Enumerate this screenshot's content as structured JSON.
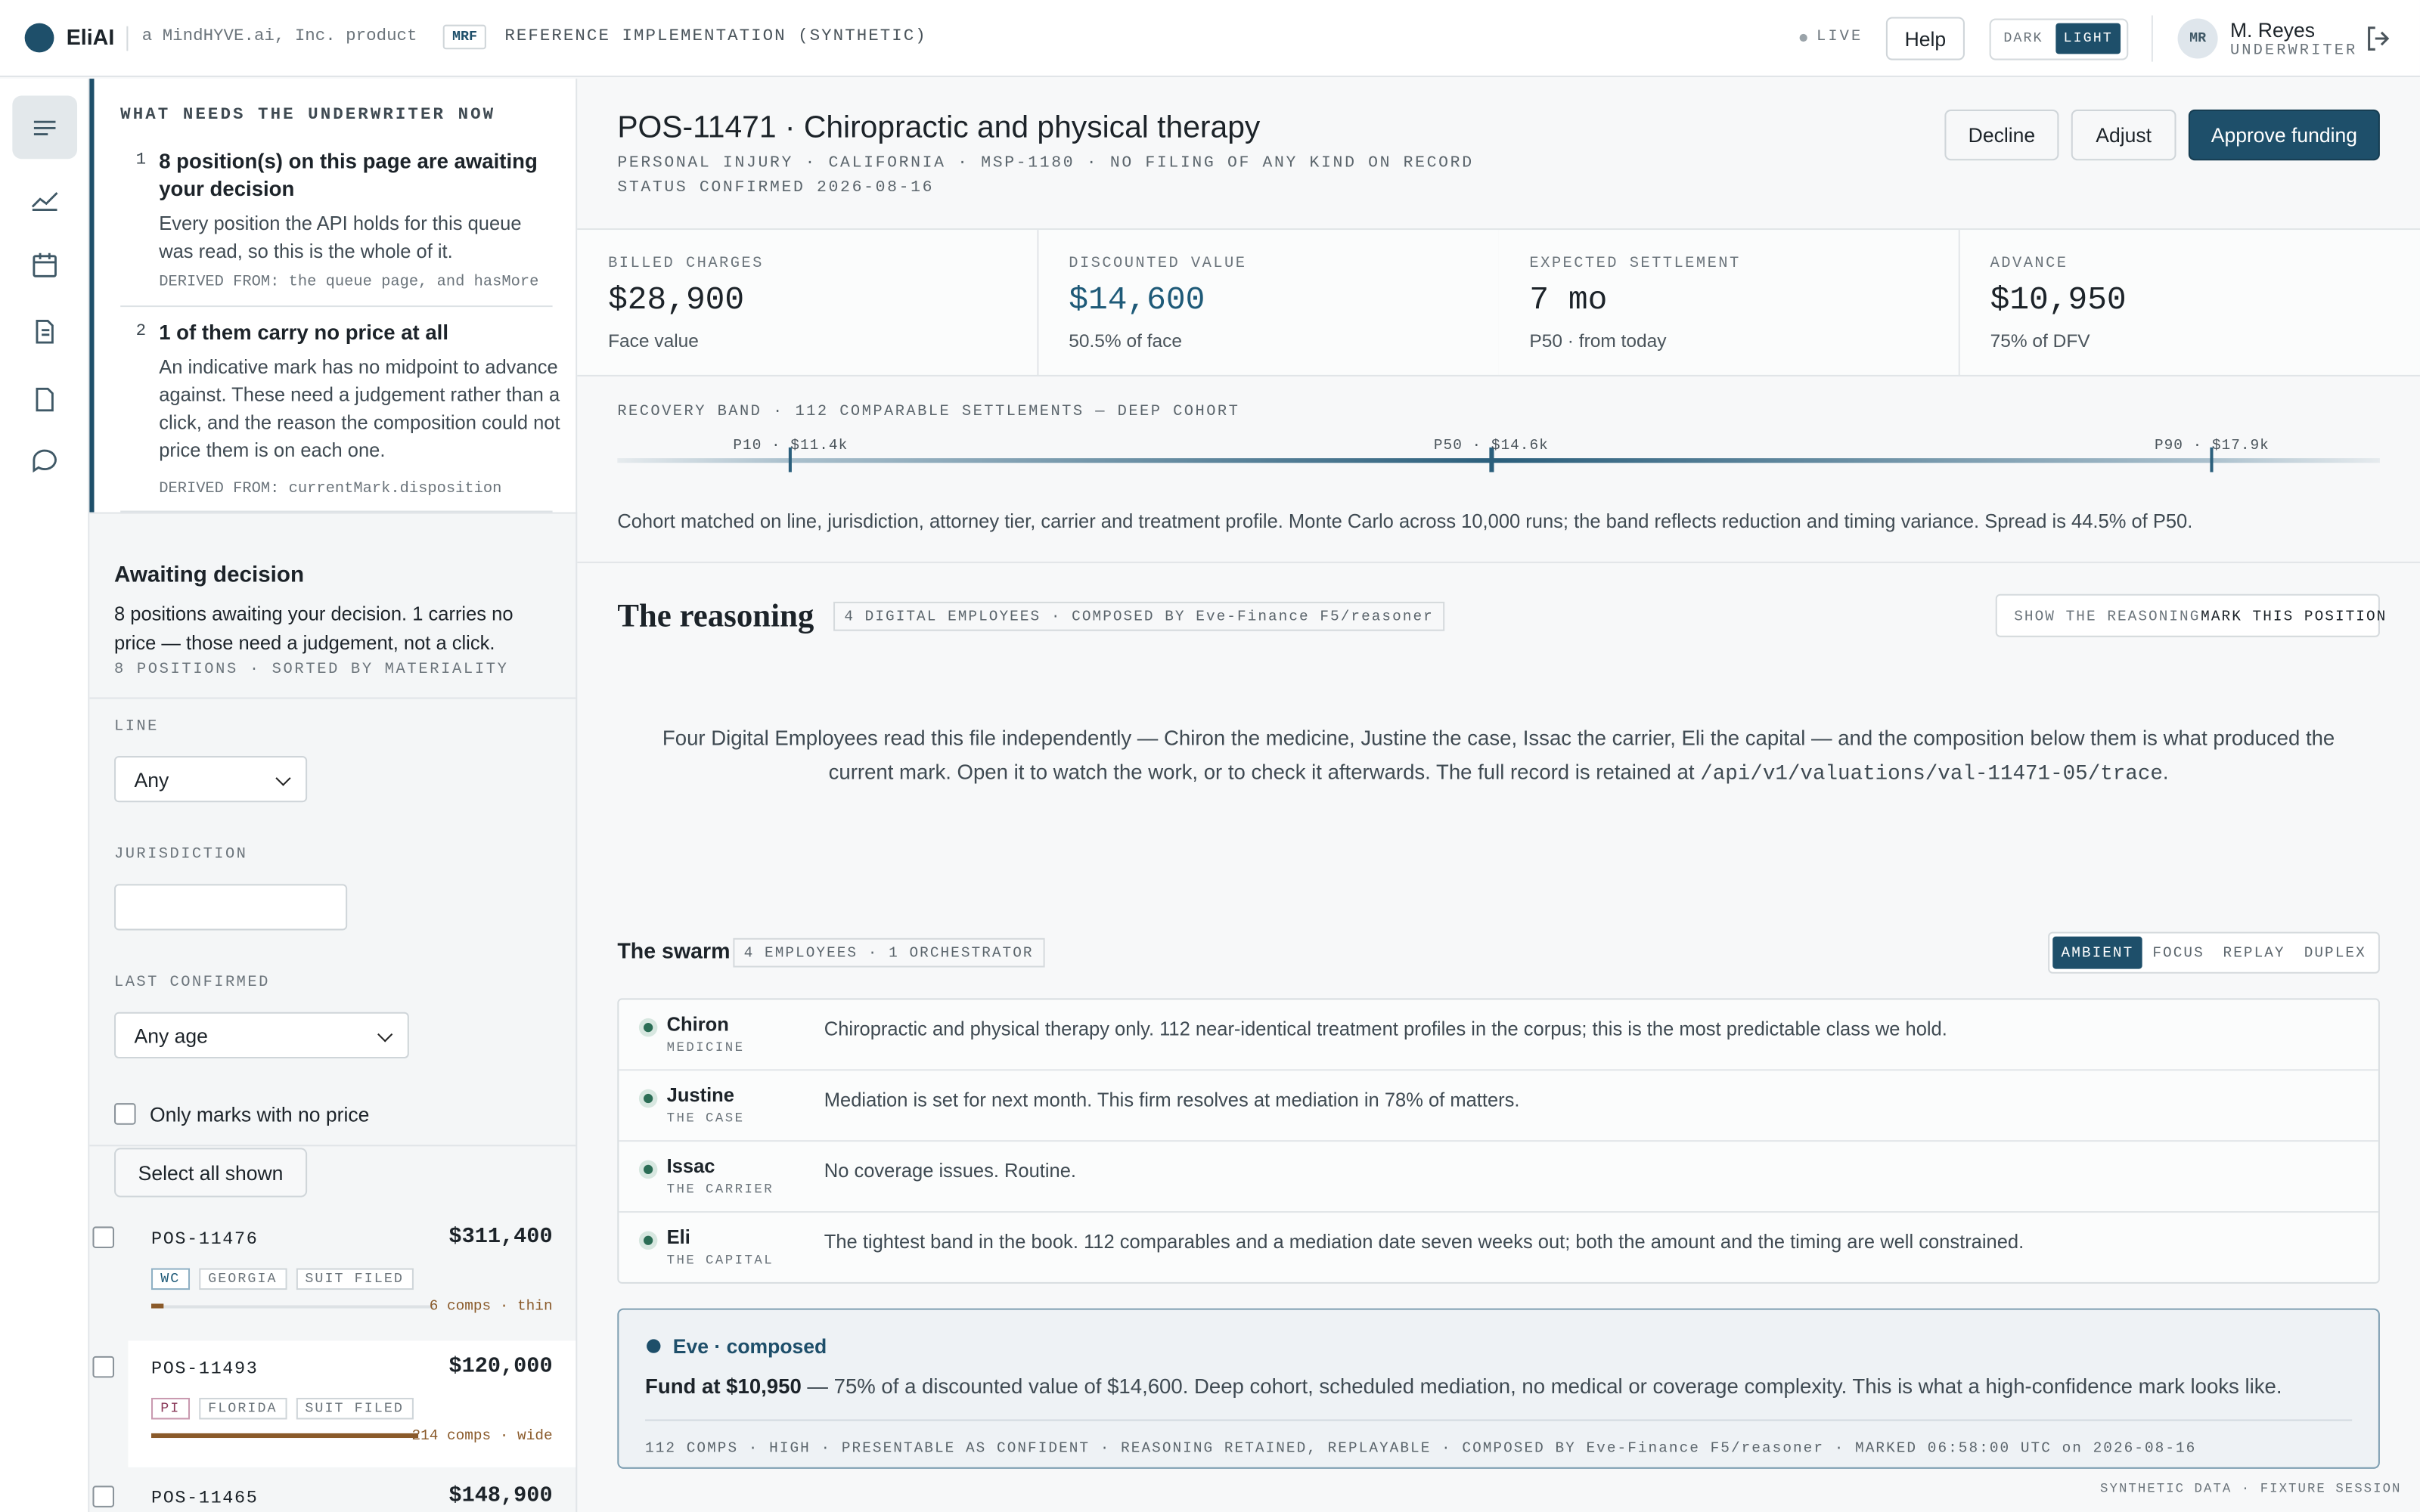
{
  "header": {
    "brand": "EliAI",
    "tagline": "a MindHYVE.ai, Inc. product",
    "badge": "MRF",
    "mode": "REFERENCE IMPLEMENTATION (SYNTHETIC)",
    "live": "LIVE",
    "help": "Help",
    "theme": [
      "DARK",
      "LIGHT"
    ],
    "user": {
      "initials": "MR",
      "name": "M. Reyes",
      "role": "UNDERWRITER"
    }
  },
  "briefing": {
    "title": "WHAT NEEDS THE UNDERWRITER NOW",
    "items": [
      {
        "num": "1",
        "head": "8 position(s) on this page are awaiting your decision",
        "body": "Every position the API holds for this queue was read, so this is the whole of it.",
        "derived": "DERIVED FROM: the queue page, and hasMore"
      },
      {
        "num": "2",
        "head": "1 of them carry no price at all",
        "body": "An indicative mark has no midpoint to advance against. These need a judgement rather than a click, and the reason the composition could not price them is on each one.",
        "derived": "DERIVED FROM: currentMark.disposition"
      }
    ]
  },
  "queue": {
    "title": "Awaiting decision",
    "summary": "8 positions awaiting your decision. 1 carries no price — those need a judgement, not a click.",
    "meta": "8 POSITIONS · SORTED BY MATERIALITY",
    "filters": {
      "line_label": "LINE",
      "line_value": "Any",
      "jurisdiction_label": "JURISDICTION",
      "last_label": "LAST CONFIRMED",
      "last_value": "Any age",
      "no_price": "Only marks with no price",
      "select_all": "Select all shown"
    },
    "positions": [
      {
        "id": "POS-11476",
        "amount": "$311,400",
        "tags": [
          "WC",
          "GEORGIA",
          "SUIT FILED"
        ],
        "comps": "6 comps · thin"
      },
      {
        "id": "POS-11493",
        "amount": "$120,000",
        "tags": [
          "PI",
          "FLORIDA",
          "SUIT FILED"
        ],
        "comps": "214 comps · wide"
      },
      {
        "id": "POS-11465",
        "amount": "$148,900"
      }
    ]
  },
  "position": {
    "title": "POS-11471 · Chiropractic and physical therapy",
    "meta": [
      "PERSONAL INJURY · CALIFORNIA · MSP-1180 · NO FILING OF ANY KIND ON RECORD",
      "STATUS CONFIRMED 2026-08-16"
    ],
    "actions": [
      "Decline",
      "Adjust",
      "Approve funding"
    ]
  },
  "metrics": [
    {
      "label": "BILLED CHARGES",
      "value": "$28,900",
      "note": "Face value"
    },
    {
      "label": "DISCOUNTED VALUE",
      "value": "$14,600",
      "note": "50.5% of face"
    },
    {
      "label": "EXPECTED SETTLEMENT",
      "value": "7 mo",
      "note": "P50 · from today"
    },
    {
      "label": "ADVANCE",
      "value": "$10,950",
      "note": "75% of DFV"
    }
  ],
  "band": {
    "title": "RECOVERY BAND · 112 COMPARABLE SETTLEMENTS — DEEP COHORT",
    "p10": "P10 · $11.4k",
    "p50": "P50 · $14.6k",
    "p90": "P90 · $17.9k",
    "note": "Cohort matched on line, jurisdiction, attorney tier, carrier and treatment profile. Monte Carlo across 10,000 runs; the band reflects reduction and timing variance. Spread is 44.5% of P50."
  },
  "reasoning": {
    "title": "The reasoning",
    "badge": "4 DIGITAL EMPLOYEES · COMPOSED BY Eve-Finance F5/reasoner",
    "toggles": [
      "SHOW THE REASONING",
      "MARK THIS POSITION"
    ],
    "intro": "Four Digital Employees read this file independently — Chiron the medicine, Justine the case, Issac the carrier, Eli the capital — and the composition below them is what produced the current mark. Open it to watch the work, or to check it afterwards. The full record is retained at ",
    "trace": "/api/v1/valuations/val-11471-05/trace",
    "intro_end": "."
  },
  "swarm": {
    "title": "The swarm",
    "badge": "4 EMPLOYEES · 1 ORCHESTRATOR",
    "modes": [
      "AMBIENT",
      "FOCUS",
      "REPLAY",
      "DUPLEX"
    ],
    "employees": [
      {
        "name": "Chiron",
        "role": "MEDICINE",
        "text": "Chiropractic and physical therapy only. 112 near-identical treatment profiles in the corpus; this is the most predictable class we hold."
      },
      {
        "name": "Justine",
        "role": "THE CASE",
        "text": "Mediation is set for next month. This firm resolves at mediation in 78% of matters."
      },
      {
        "name": "Issac",
        "role": "THE CARRIER",
        "text": "No coverage issues. Routine."
      },
      {
        "name": "Eli",
        "role": "THE CAPITAL",
        "text": "The tightest band in the book. 112 comparables and a mediation date seven weeks out; both the amount and the timing are well constrained."
      }
    ]
  },
  "composed": {
    "title": "Eve · composed",
    "lead": "Fund at $10,950",
    "text": " — 75% of a discounted value of $14,600. Deep cohort, scheduled mediation, no medical or coverage complexity. This is what a high-confidence mark looks like.",
    "footer": "112 COMPS · HIGH · PRESENTABLE AS CONFIDENT · REASONING RETAINED, REPLAYABLE · COMPOSED BY Eve-Finance F5/reasoner · MARKED 06:58:00 UTC on 2026-08-16"
  },
  "footer": "SYNTHETIC DATA · FIXTURE SESSION"
}
